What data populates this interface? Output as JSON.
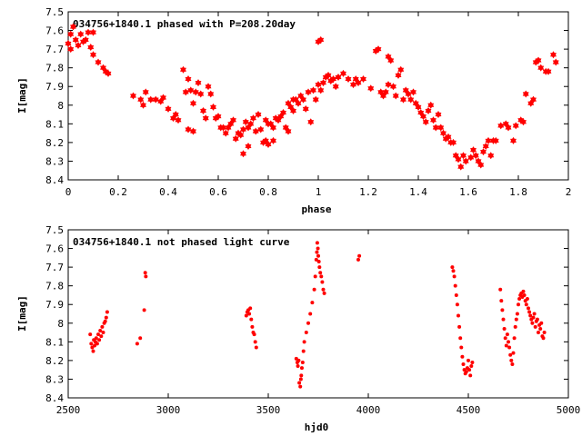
{
  "chart_data": [
    {
      "type": "scatter",
      "title": "034756+1840.1 phased with P=208.20day",
      "xlabel": "phase",
      "ylabel": "I[mag]",
      "xlim": [
        0,
        2
      ],
      "ylim": [
        7.5,
        8.4
      ],
      "y_inverted": true,
      "marker": "star",
      "color": "#ff0000",
      "xticks": [
        {
          "v": 0,
          "label": "0"
        },
        {
          "v": 0.2,
          "label": "0.2"
        },
        {
          "v": 0.4,
          "label": "0.4"
        },
        {
          "v": 0.6,
          "label": "0.6"
        },
        {
          "v": 0.8,
          "label": "0.8"
        },
        {
          "v": 1,
          "label": "1"
        },
        {
          "v": 1.2,
          "label": "1.2"
        },
        {
          "v": 1.4,
          "label": "1.4"
        },
        {
          "v": 1.6,
          "label": "1.6"
        },
        {
          "v": 1.8,
          "label": "1.8"
        },
        {
          "v": 2,
          "label": "2"
        }
      ],
      "yticks": [
        {
          "v": 7.5,
          "label": "7.5"
        },
        {
          "v": 7.6,
          "label": "7.6"
        },
        {
          "v": 7.7,
          "label": "7.7"
        },
        {
          "v": 7.8,
          "label": "7.8"
        },
        {
          "v": 7.9,
          "label": "7.9"
        },
        {
          "v": 8,
          "label": "8"
        },
        {
          "v": 8.1,
          "label": "8.1"
        },
        {
          "v": 8.2,
          "label": "8.2"
        },
        {
          "v": 8.3,
          "label": "8.3"
        },
        {
          "v": 8.4,
          "label": "8.4"
        }
      ],
      "points": [
        [
          0.0,
          7.67
        ],
        [
          0.01,
          7.62
        ],
        [
          0.01,
          7.7
        ],
        [
          0.02,
          7.58
        ],
        [
          0.03,
          7.65
        ],
        [
          0.04,
          7.68
        ],
        [
          0.05,
          7.62
        ],
        [
          0.06,
          7.66
        ],
        [
          0.07,
          7.65
        ],
        [
          0.08,
          7.61
        ],
        [
          0.09,
          7.69
        ],
        [
          0.1,
          7.61
        ],
        [
          0.1,
          7.73
        ],
        [
          0.12,
          7.77
        ],
        [
          0.14,
          7.8
        ],
        [
          0.15,
          7.82
        ],
        [
          0.16,
          7.83
        ],
        [
          0.26,
          7.95
        ],
        [
          0.29,
          7.97
        ],
        [
          0.3,
          8.0
        ],
        [
          0.31,
          7.93
        ],
        [
          0.33,
          7.97
        ],
        [
          0.35,
          7.97
        ],
        [
          0.37,
          7.98
        ],
        [
          0.38,
          7.96
        ],
        [
          0.4,
          8.02
        ],
        [
          0.42,
          8.07
        ],
        [
          0.43,
          8.05
        ],
        [
          0.44,
          8.08
        ],
        [
          0.46,
          7.81
        ],
        [
          0.47,
          7.93
        ],
        [
          0.48,
          7.86
        ],
        [
          0.48,
          8.13
        ],
        [
          0.49,
          7.92
        ],
        [
          0.5,
          8.14
        ],
        [
          0.5,
          7.99
        ],
        [
          0.51,
          7.93
        ],
        [
          0.52,
          7.88
        ],
        [
          0.53,
          7.94
        ],
        [
          0.54,
          8.03
        ],
        [
          0.55,
          8.07
        ],
        [
          0.56,
          7.9
        ],
        [
          0.57,
          7.94
        ],
        [
          0.58,
          8.01
        ],
        [
          0.59,
          8.07
        ],
        [
          0.6,
          8.06
        ],
        [
          0.61,
          8.12
        ],
        [
          0.62,
          8.12
        ],
        [
          0.63,
          8.15
        ],
        [
          0.64,
          8.12
        ],
        [
          0.65,
          8.1
        ],
        [
          0.66,
          8.08
        ],
        [
          0.67,
          8.18
        ],
        [
          0.68,
          8.15
        ],
        [
          0.69,
          8.16
        ],
        [
          0.7,
          8.13
        ],
        [
          0.7,
          8.26
        ],
        [
          0.71,
          8.09
        ],
        [
          0.72,
          8.12
        ],
        [
          0.72,
          8.22
        ],
        [
          0.73,
          8.1
        ],
        [
          0.74,
          8.07
        ],
        [
          0.75,
          8.14
        ],
        [
          0.76,
          8.05
        ],
        [
          0.77,
          8.13
        ],
        [
          0.78,
          8.2
        ],
        [
          0.79,
          8.08
        ],
        [
          0.79,
          8.19
        ],
        [
          0.8,
          8.1
        ],
        [
          0.8,
          8.21
        ],
        [
          0.81,
          8.1
        ],
        [
          0.82,
          8.12
        ],
        [
          0.82,
          8.19
        ],
        [
          0.83,
          8.07
        ],
        [
          0.84,
          8.08
        ],
        [
          0.85,
          8.06
        ],
        [
          0.86,
          8.04
        ],
        [
          0.87,
          8.12
        ],
        [
          0.88,
          7.99
        ],
        [
          0.88,
          8.14
        ],
        [
          0.89,
          8.01
        ],
        [
          0.9,
          7.97
        ],
        [
          0.9,
          8.03
        ],
        [
          0.91,
          7.97
        ],
        [
          0.92,
          7.99
        ],
        [
          0.93,
          7.95
        ],
        [
          0.94,
          7.97
        ],
        [
          0.95,
          8.02
        ],
        [
          0.96,
          7.93
        ],
        [
          0.97,
          8.09
        ],
        [
          0.98,
          7.92
        ],
        [
          0.99,
          7.97
        ],
        [
          1.0,
          7.89
        ],
        [
          1.0,
          7.66
        ],
        [
          1.01,
          7.92
        ],
        [
          1.01,
          7.65
        ],
        [
          1.02,
          7.88
        ],
        [
          1.03,
          7.85
        ],
        [
          1.04,
          7.84
        ],
        [
          1.05,
          7.87
        ],
        [
          1.06,
          7.86
        ],
        [
          1.07,
          7.9
        ],
        [
          1.08,
          7.85
        ],
        [
          1.1,
          7.83
        ],
        [
          1.12,
          7.86
        ],
        [
          1.14,
          7.89
        ],
        [
          1.15,
          7.86
        ],
        [
          1.16,
          7.88
        ],
        [
          1.18,
          7.86
        ],
        [
          1.21,
          7.91
        ],
        [
          1.23,
          7.71
        ],
        [
          1.24,
          7.7
        ],
        [
          1.25,
          7.93
        ],
        [
          1.26,
          7.95
        ],
        [
          1.27,
          7.93
        ],
        [
          1.28,
          7.89
        ],
        [
          1.28,
          7.74
        ],
        [
          1.29,
          7.76
        ],
        [
          1.3,
          7.9
        ],
        [
          1.31,
          7.95
        ],
        [
          1.32,
          7.84
        ],
        [
          1.33,
          7.81
        ],
        [
          1.34,
          7.97
        ],
        [
          1.35,
          7.92
        ],
        [
          1.36,
          7.94
        ],
        [
          1.37,
          7.97
        ],
        [
          1.38,
          7.93
        ],
        [
          1.39,
          7.99
        ],
        [
          1.4,
          8.01
        ],
        [
          1.41,
          8.04
        ],
        [
          1.42,
          8.06
        ],
        [
          1.43,
          8.09
        ],
        [
          1.44,
          8.03
        ],
        [
          1.45,
          8.0
        ],
        [
          1.46,
          8.08
        ],
        [
          1.47,
          8.12
        ],
        [
          1.48,
          8.05
        ],
        [
          1.49,
          8.12
        ],
        [
          1.5,
          8.15
        ],
        [
          1.51,
          8.18
        ],
        [
          1.52,
          8.17
        ],
        [
          1.53,
          8.2
        ],
        [
          1.54,
          8.2
        ],
        [
          1.55,
          8.27
        ],
        [
          1.56,
          8.29
        ],
        [
          1.57,
          8.33
        ],
        [
          1.58,
          8.27
        ],
        [
          1.59,
          8.3
        ],
        [
          1.61,
          8.28
        ],
        [
          1.62,
          8.24
        ],
        [
          1.63,
          8.27
        ],
        [
          1.64,
          8.3
        ],
        [
          1.65,
          8.32
        ],
        [
          1.66,
          8.25
        ],
        [
          1.67,
          8.22
        ],
        [
          1.68,
          8.19
        ],
        [
          1.69,
          8.27
        ],
        [
          1.7,
          8.19
        ],
        [
          1.71,
          8.19
        ],
        [
          1.73,
          8.11
        ],
        [
          1.75,
          8.1
        ],
        [
          1.76,
          8.12
        ],
        [
          1.78,
          8.19
        ],
        [
          1.79,
          8.11
        ],
        [
          1.81,
          8.08
        ],
        [
          1.82,
          8.09
        ],
        [
          1.83,
          7.94
        ],
        [
          1.85,
          7.99
        ],
        [
          1.86,
          7.97
        ],
        [
          1.87,
          7.77
        ],
        [
          1.88,
          7.76
        ],
        [
          1.89,
          7.8
        ],
        [
          1.91,
          7.82
        ],
        [
          1.92,
          7.82
        ],
        [
          1.94,
          7.73
        ],
        [
          1.95,
          7.77
        ]
      ]
    },
    {
      "type": "scatter",
      "title": "034756+1840.1 not phased light curve",
      "xlabel": "hjd0",
      "ylabel": "I[mag]",
      "xlim": [
        2500,
        5000
      ],
      "ylim": [
        7.5,
        8.4
      ],
      "y_inverted": true,
      "marker": "dot",
      "color": "#ff0000",
      "xticks": [
        {
          "v": 2500,
          "label": "2500"
        },
        {
          "v": 3000,
          "label": "3000"
        },
        {
          "v": 3500,
          "label": "3500"
        },
        {
          "v": 4000,
          "label": "4000"
        },
        {
          "v": 4500,
          "label": "4500"
        },
        {
          "v": 5000,
          "label": "5000"
        }
      ],
      "yticks": [
        {
          "v": 7.5,
          "label": "7.5"
        },
        {
          "v": 7.6,
          "label": "7.6"
        },
        {
          "v": 7.7,
          "label": "7.7"
        },
        {
          "v": 7.8,
          "label": "7.8"
        },
        {
          "v": 7.9,
          "label": "7.9"
        },
        {
          "v": 8,
          "label": "8"
        },
        {
          "v": 8.1,
          "label": "8.1"
        },
        {
          "v": 8.2,
          "label": "8.2"
        },
        {
          "v": 8.3,
          "label": "8.3"
        },
        {
          "v": 8.4,
          "label": "8.4"
        }
      ],
      "points": [
        [
          2610,
          8.06
        ],
        [
          2615,
          8.11
        ],
        [
          2620,
          8.13
        ],
        [
          2625,
          8.15
        ],
        [
          2628,
          8.09
        ],
        [
          2632,
          8.12
        ],
        [
          2636,
          8.1
        ],
        [
          2640,
          8.08
        ],
        [
          2645,
          8.11
        ],
        [
          2650,
          8.06
        ],
        [
          2655,
          8.09
        ],
        [
          2660,
          8.04
        ],
        [
          2665,
          8.07
        ],
        [
          2670,
          8.02
        ],
        [
          2675,
          8.05
        ],
        [
          2680,
          8.0
        ],
        [
          2685,
          7.99
        ],
        [
          2690,
          7.97
        ],
        [
          2695,
          7.94
        ],
        [
          2845,
          8.11
        ],
        [
          2860,
          8.08
        ],
        [
          2880,
          7.93
        ],
        [
          2885,
          7.73
        ],
        [
          2888,
          7.75
        ],
        [
          3390,
          7.96
        ],
        [
          3395,
          7.94
        ],
        [
          3400,
          7.93
        ],
        [
          3405,
          7.95
        ],
        [
          3410,
          7.92
        ],
        [
          3415,
          7.98
        ],
        [
          3420,
          8.02
        ],
        [
          3425,
          8.05
        ],
        [
          3430,
          8.06
        ],
        [
          3435,
          8.1
        ],
        [
          3440,
          8.13
        ],
        [
          3640,
          8.19
        ],
        [
          3645,
          8.21
        ],
        [
          3648,
          8.23
        ],
        [
          3652,
          8.2
        ],
        [
          3655,
          8.32
        ],
        [
          3660,
          8.34
        ],
        [
          3663,
          8.3
        ],
        [
          3665,
          8.28
        ],
        [
          3668,
          8.24
        ],
        [
          3672,
          8.21
        ],
        [
          3676,
          8.15
        ],
        [
          3680,
          8.1
        ],
        [
          3690,
          8.05
        ],
        [
          3700,
          8.0
        ],
        [
          3710,
          7.95
        ],
        [
          3720,
          7.89
        ],
        [
          3730,
          7.82
        ],
        [
          3735,
          7.75
        ],
        [
          3740,
          7.66
        ],
        [
          3743,
          7.62
        ],
        [
          3745,
          7.57
        ],
        [
          3748,
          7.6
        ],
        [
          3750,
          7.64
        ],
        [
          3753,
          7.67
        ],
        [
          3756,
          7.7
        ],
        [
          3760,
          7.73
        ],
        [
          3765,
          7.75
        ],
        [
          3770,
          7.78
        ],
        [
          3775,
          7.82
        ],
        [
          3780,
          7.84
        ],
        [
          3950,
          7.66
        ],
        [
          3955,
          7.64
        ],
        [
          4420,
          7.7
        ],
        [
          4425,
          7.72
        ],
        [
          4430,
          7.75
        ],
        [
          4435,
          7.8
        ],
        [
          4440,
          7.85
        ],
        [
          4445,
          7.9
        ],
        [
          4450,
          7.96
        ],
        [
          4455,
          8.02
        ],
        [
          4460,
          8.08
        ],
        [
          4465,
          8.13
        ],
        [
          4470,
          8.18
        ],
        [
          4475,
          8.22
        ],
        [
          4480,
          8.25
        ],
        [
          4485,
          8.27
        ],
        [
          4490,
          8.26
        ],
        [
          4495,
          8.24
        ],
        [
          4500,
          8.2
        ],
        [
          4505,
          8.25
        ],
        [
          4510,
          8.28
        ],
        [
          4515,
          8.23
        ],
        [
          4520,
          8.21
        ],
        [
          4660,
          7.82
        ],
        [
          4665,
          7.88
        ],
        [
          4670,
          7.93
        ],
        [
          4675,
          7.98
        ],
        [
          4680,
          8.03
        ],
        [
          4685,
          8.08
        ],
        [
          4690,
          8.12
        ],
        [
          4695,
          8.06
        ],
        [
          4700,
          8.1
        ],
        [
          4705,
          8.13
        ],
        [
          4710,
          8.17
        ],
        [
          4715,
          8.2
        ],
        [
          4720,
          8.22
        ],
        [
          4725,
          8.16
        ],
        [
          4730,
          8.08
        ],
        [
          4735,
          8.02
        ],
        [
          4740,
          7.98
        ],
        [
          4745,
          7.95
        ],
        [
          4750,
          7.9
        ],
        [
          4755,
          7.87
        ],
        [
          4760,
          7.85
        ],
        [
          4765,
          7.84
        ],
        [
          4770,
          7.86
        ],
        [
          4775,
          7.83
        ],
        [
          4780,
          7.85
        ],
        [
          4785,
          7.88
        ],
        [
          4790,
          7.9
        ],
        [
          4795,
          7.87
        ],
        [
          4800,
          7.92
        ],
        [
          4805,
          7.94
        ],
        [
          4810,
          7.96
        ],
        [
          4815,
          7.98
        ],
        [
          4820,
          8.0
        ],
        [
          4825,
          7.97
        ],
        [
          4830,
          7.95
        ],
        [
          4835,
          8.02
        ],
        [
          4840,
          7.99
        ],
        [
          4845,
          7.98
        ],
        [
          4850,
          8.05
        ],
        [
          4855,
          8.01
        ],
        [
          4860,
          8.03
        ],
        [
          4865,
          8.0
        ],
        [
          4870,
          8.07
        ],
        [
          4875,
          8.08
        ],
        [
          4880,
          8.05
        ]
      ]
    }
  ]
}
